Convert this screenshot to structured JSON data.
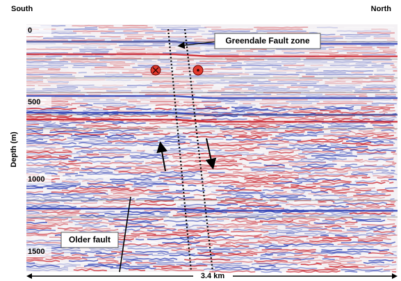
{
  "header": {
    "left": "South",
    "right": "North"
  },
  "axis": {
    "label": "Depth (m)",
    "depth_labels": [
      "0",
      "500",
      "1000",
      "1500"
    ]
  },
  "annotations": {
    "fault_zone": "Greendale Fault zone",
    "older_fault": "Older fault"
  },
  "scale": {
    "label": "3.4 km"
  }
}
